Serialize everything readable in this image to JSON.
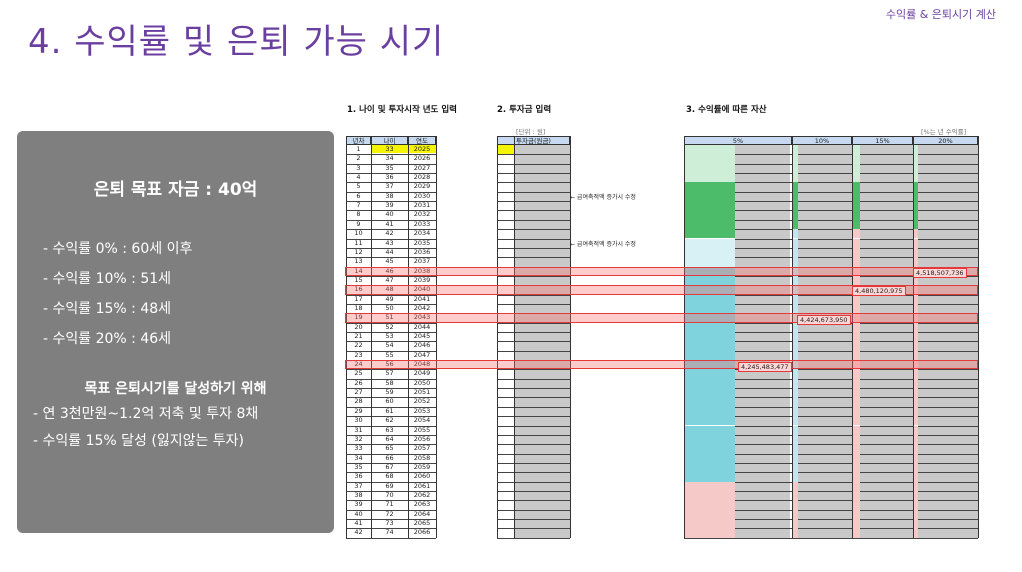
{
  "header": {
    "tag": "수익률 & 은퇴시기 계산",
    "title": "4. 수익률 및 은퇴 가능 시기"
  },
  "panel": {
    "heading": "은퇴 목표 자금 : 40억",
    "rates": [
      "- 수익률   0% : 60세 이후",
      "- 수익률 10% : 51세",
      "- 수익률 15% : 48세",
      "- 수익률 20% : 46세"
    ],
    "subheading": "목표 은퇴시기를 달성하기 위해",
    "plans": [
      "- 연 3천만원~1.2억 저축 및 투자 8채",
      "- 수익률 15% 달성 (잃지않는 투자)"
    ]
  },
  "sections": {
    "age": "1. 나이 및 투자시작 년도 입력",
    "invest": "2. 투자금 입력",
    "assets": "3. 수익률에 따른 자산"
  },
  "units": {
    "won": "[단위 : 원]",
    "rate_note": "[%는 년 수익률]"
  },
  "table": {
    "headers": {
      "n": "년차",
      "age": "나이",
      "year": "연도",
      "invest": "투자금(원금)",
      "r5": "5%",
      "r10": "10%",
      "r15": "15%",
      "r20": "20%"
    },
    "rows": [
      [
        1,
        33,
        2025
      ],
      [
        2,
        34,
        2026
      ],
      [
        3,
        35,
        2027
      ],
      [
        4,
        36,
        2028
      ],
      [
        5,
        37,
        2029
      ],
      [
        6,
        38,
        2030
      ],
      [
        7,
        39,
        2031
      ],
      [
        8,
        40,
        2032
      ],
      [
        9,
        41,
        2033
      ],
      [
        10,
        42,
        2034
      ],
      [
        11,
        43,
        2035
      ],
      [
        12,
        44,
        2036
      ],
      [
        13,
        45,
        2037
      ],
      [
        14,
        46,
        2038
      ],
      [
        15,
        47,
        2039
      ],
      [
        16,
        48,
        2040
      ],
      [
        17,
        49,
        2041
      ],
      [
        18,
        50,
        2042
      ],
      [
        19,
        51,
        2043
      ],
      [
        20,
        52,
        2044
      ],
      [
        21,
        53,
        2045
      ],
      [
        22,
        54,
        2046
      ],
      [
        23,
        55,
        2047
      ],
      [
        24,
        56,
        2048
      ],
      [
        25,
        57,
        2049
      ],
      [
        26,
        58,
        2050
      ],
      [
        27,
        59,
        2051
      ],
      [
        28,
        60,
        2052
      ],
      [
        29,
        61,
        2053
      ],
      [
        30,
        62,
        2054
      ],
      [
        31,
        63,
        2055
      ],
      [
        32,
        64,
        2056
      ],
      [
        33,
        65,
        2057
      ],
      [
        34,
        66,
        2058
      ],
      [
        35,
        67,
        2059
      ],
      [
        36,
        68,
        2060
      ],
      [
        37,
        69,
        2061
      ],
      [
        38,
        70,
        2062
      ],
      [
        39,
        71,
        2063
      ],
      [
        40,
        72,
        2064
      ],
      [
        41,
        73,
        2065
      ],
      [
        42,
        74,
        2066
      ]
    ],
    "highlight_years": [
      14,
      16,
      19,
      24
    ],
    "amounts": {
      "r20": "4,518,507,736",
      "r15": "4,480,120,975",
      "r10": "4,424,673,950",
      "r5": "4,245,483,477"
    },
    "notes": [
      "← 급여축적액 증가시 수정",
      "← 급여축적액 증가시 수정"
    ]
  },
  "colors": {
    "title": "#6b3fa0",
    "panel": "#7f7f7f",
    "green": "#4cbb6a",
    "teal": "#7fd3dc",
    "pink": "#f6c9c9",
    "highlight": "#e23a3a"
  }
}
